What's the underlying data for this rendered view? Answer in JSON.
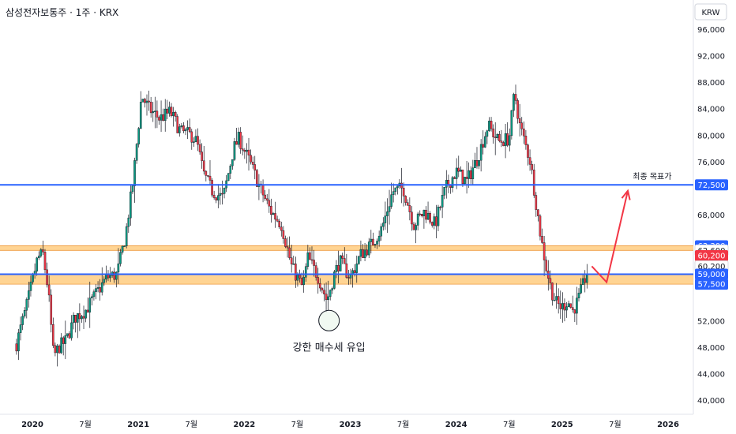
{
  "header": {
    "title": "삼성전자보통주 · 1주 · KRX",
    "currency": "KRW"
  },
  "colors": {
    "up": "#089981",
    "down": "#f23645",
    "blue_line": "#2962ff",
    "zone": "#ffcc80",
    "annot_red": "#f23645"
  },
  "chart_data": {
    "type": "candlestick",
    "title": "삼성전자보통주 · 1주 · KRX",
    "currency": "KRW",
    "y_ticks": [
      40000,
      44000,
      48000,
      52000,
      56000,
      60000,
      64000,
      68000,
      72000,
      76000,
      80000,
      84000,
      88000,
      92000,
      96000
    ],
    "y_tick_labels": [
      "40,000",
      "44,000",
      "48,000",
      "52,000",
      "",
      "",
      "",
      "68,000",
      "",
      "76,000",
      "80,000",
      "84,000",
      "88,000",
      "92,000",
      "96,000"
    ],
    "x_ticks": [
      {
        "label": "2020",
        "t": 2020.0
      },
      {
        "label": "7월",
        "t": 2020.5
      },
      {
        "label": "2021",
        "t": 2021.0
      },
      {
        "label": "7월",
        "t": 2021.5
      },
      {
        "label": "2022",
        "t": 2022.0
      },
      {
        "label": "7월",
        "t": 2022.5
      },
      {
        "label": "2023",
        "t": 2023.0
      },
      {
        "label": "7월",
        "t": 2023.5
      },
      {
        "label": "2024",
        "t": 2024.0
      },
      {
        "label": "7월",
        "t": 2024.5
      },
      {
        "label": "2025",
        "t": 2025.0
      },
      {
        "label": "7월",
        "t": 2025.5
      },
      {
        "label": "2026",
        "t": 2026.0
      }
    ],
    "price_path": [
      [
        2019.85,
        48500
      ],
      [
        2019.95,
        54500
      ],
      [
        2020.05,
        61500
      ],
      [
        2020.1,
        62000
      ],
      [
        2020.15,
        56500
      ],
      [
        2020.2,
        46500
      ],
      [
        2020.25,
        48000
      ],
      [
        2020.32,
        49000
      ],
      [
        2020.4,
        52500
      ],
      [
        2020.5,
        53500
      ],
      [
        2020.6,
        56000
      ],
      [
        2020.7,
        58500
      ],
      [
        2020.8,
        59000
      ],
      [
        2020.88,
        65000
      ],
      [
        2020.95,
        73000
      ],
      [
        2021.03,
        86000
      ],
      [
        2021.1,
        84000
      ],
      [
        2021.2,
        82500
      ],
      [
        2021.3,
        83500
      ],
      [
        2021.4,
        80500
      ],
      [
        2021.5,
        80000
      ],
      [
        2021.55,
        79000
      ],
      [
        2021.62,
        74000
      ],
      [
        2021.7,
        71500
      ],
      [
        2021.8,
        70500
      ],
      [
        2021.9,
        78000
      ],
      [
        2021.95,
        79500
      ],
      [
        2022.05,
        76000
      ],
      [
        2022.15,
        72000
      ],
      [
        2022.25,
        68500
      ],
      [
        2022.35,
        66500
      ],
      [
        2022.45,
        60000
      ],
      [
        2022.55,
        57000
      ],
      [
        2022.6,
        61500
      ],
      [
        2022.7,
        58500
      ],
      [
        2022.78,
        55000
      ],
      [
        2022.85,
        59000
      ],
      [
        2022.9,
        61000
      ],
      [
        2023.0,
        58500
      ],
      [
        2023.1,
        62000
      ],
      [
        2023.2,
        63500
      ],
      [
        2023.3,
        66000
      ],
      [
        2023.4,
        71500
      ],
      [
        2023.5,
        72000
      ],
      [
        2023.6,
        66500
      ],
      [
        2023.7,
        68500
      ],
      [
        2023.8,
        66500
      ],
      [
        2023.9,
        72000
      ],
      [
        2024.0,
        74500
      ],
      [
        2024.1,
        73000
      ],
      [
        2024.2,
        76500
      ],
      [
        2024.3,
        81500
      ],
      [
        2024.4,
        79000
      ],
      [
        2024.5,
        79500
      ],
      [
        2024.55,
        86500
      ],
      [
        2024.6,
        81500
      ],
      [
        2024.7,
        76000
      ],
      [
        2024.8,
        64500
      ],
      [
        2024.85,
        60000
      ],
      [
        2024.9,
        56500
      ],
      [
        2024.95,
        54500
      ],
      [
        2025.0,
        54000
      ],
      [
        2025.05,
        55000
      ],
      [
        2025.1,
        53500
      ],
      [
        2025.15,
        55000
      ],
      [
        2025.2,
        57500
      ],
      [
        2025.25,
        60200
      ]
    ],
    "horizontal_levels": [
      {
        "price": 72500,
        "label": "72,500",
        "color": "#2962ff"
      },
      {
        "price": 59000,
        "label": "59,000",
        "color": "#2962ff"
      }
    ],
    "zones": [
      {
        "from": 62600,
        "to": 63300,
        "color": "#ffcc80"
      },
      {
        "from": 57500,
        "to": 59000,
        "color": "#ffcc80"
      }
    ],
    "price_tags": [
      {
        "price": 72500,
        "label": "72,500",
        "color": "#2962ff"
      },
      {
        "price": 63300,
        "label": "63,300",
        "color": "#2962ff"
      },
      {
        "price": 62600,
        "label": "62,600",
        "color": "#ffffff"
      },
      {
        "price": 61800,
        "label": "60,200",
        "color": "#f23645"
      },
      {
        "price": 60200,
        "label": "60,200",
        "color": "#ffffff"
      },
      {
        "price": 59000,
        "label": "59,000",
        "color": "#2962ff"
      },
      {
        "price": 57500,
        "label": "57,500",
        "color": "#2962ff"
      }
    ],
    "projection": [
      [
        2025.28,
        60200
      ],
      [
        2025.42,
        57800
      ],
      [
        2025.62,
        71600
      ]
    ],
    "annotations": [
      {
        "text": "강한 매수세 유입",
        "t": 2022.8,
        "price": 52000
      },
      {
        "text": "최종 목표가",
        "t": 2025.85,
        "price": 72500
      }
    ]
  }
}
